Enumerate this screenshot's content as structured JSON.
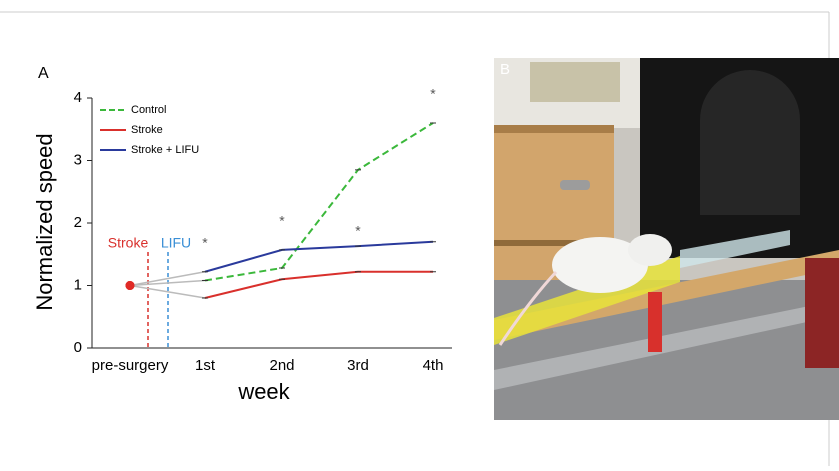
{
  "chart_data": {
    "type": "line",
    "panel_label": "A",
    "photo_label": "B",
    "x_label": "week",
    "y_label": "Normalized speed",
    "categories": [
      "pre-surgery",
      "1st",
      "2nd",
      "3rd",
      "4th"
    ],
    "series": [
      {
        "name": "Control",
        "color": "#3bb83b",
        "dash": true,
        "values": [
          1,
          1.08,
          1.28,
          2.85,
          3.6
        ]
      },
      {
        "name": "Stroke",
        "color": "#d9302c",
        "dash": false,
        "values": [
          1,
          0.8,
          1.1,
          1.22,
          1.22
        ]
      },
      {
        "name": "Stroke + LIFU",
        "color": "#2a3a9c",
        "dash": false,
        "values": [
          1,
          1.22,
          1.57,
          1.63,
          1.7
        ]
      }
    ],
    "significance": [
      null,
      "*",
      "*",
      "*",
      "*"
    ],
    "events": [
      {
        "label": "Stroke",
        "color": "#d9302c"
      },
      {
        "label": "LIFU",
        "color": "#3a8fd6"
      }
    ],
    "ylim": [
      0,
      4
    ],
    "yticks": [
      0,
      1,
      2,
      3,
      4
    ]
  }
}
